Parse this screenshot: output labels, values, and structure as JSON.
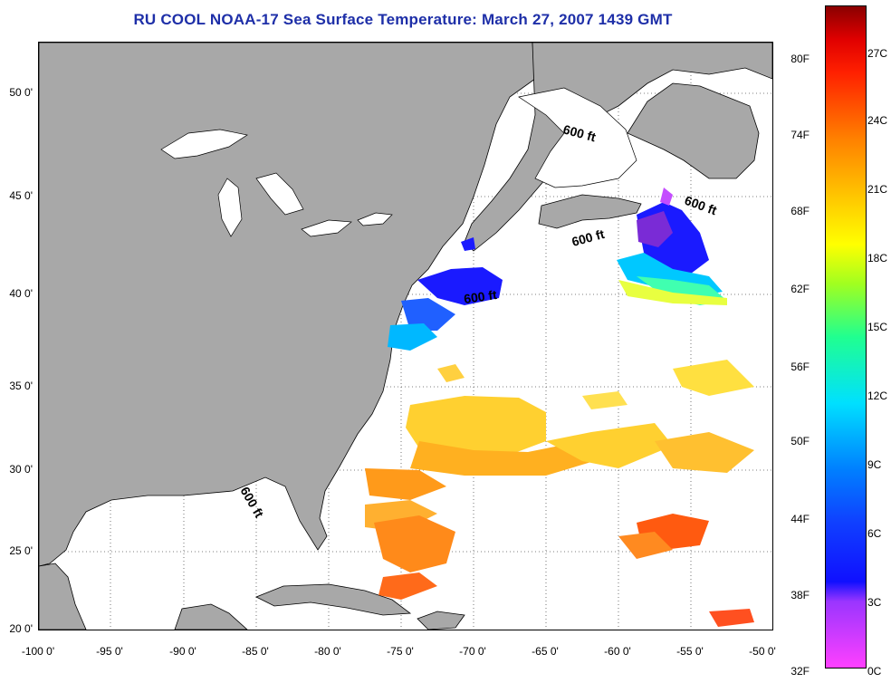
{
  "title": "RU COOL  NOAA-17  Sea Surface Temperature:  March 27, 2007 1439 GMT",
  "contour_label": "600 ft",
  "lat_labels": [
    "50 0'",
    "45 0'",
    "40 0'",
    "35 0'",
    "30 0'",
    "25 0'",
    "20 0'"
  ],
  "lon_labels": [
    "-100 0'",
    "-95 0'",
    "-90 0'",
    "-85 0'",
    "-80 0'",
    "-75 0'",
    "-70 0'",
    "-65 0'",
    "-60 0'",
    "-55 0'",
    "-50 0'"
  ],
  "colorbar": {
    "fahrenheit": [
      "80F",
      "74F",
      "68F",
      "62F",
      "56F",
      "50F",
      "44F",
      "38F",
      "32F"
    ],
    "celsius": [
      "27C",
      "24C",
      "21C",
      "18C",
      "15C",
      "12C",
      "9C",
      "6C",
      "3C",
      "0C"
    ]
  },
  "colors": {
    "land": "#a8a8a8",
    "ocean": "#ffffff",
    "title": "#1e2fa8"
  }
}
